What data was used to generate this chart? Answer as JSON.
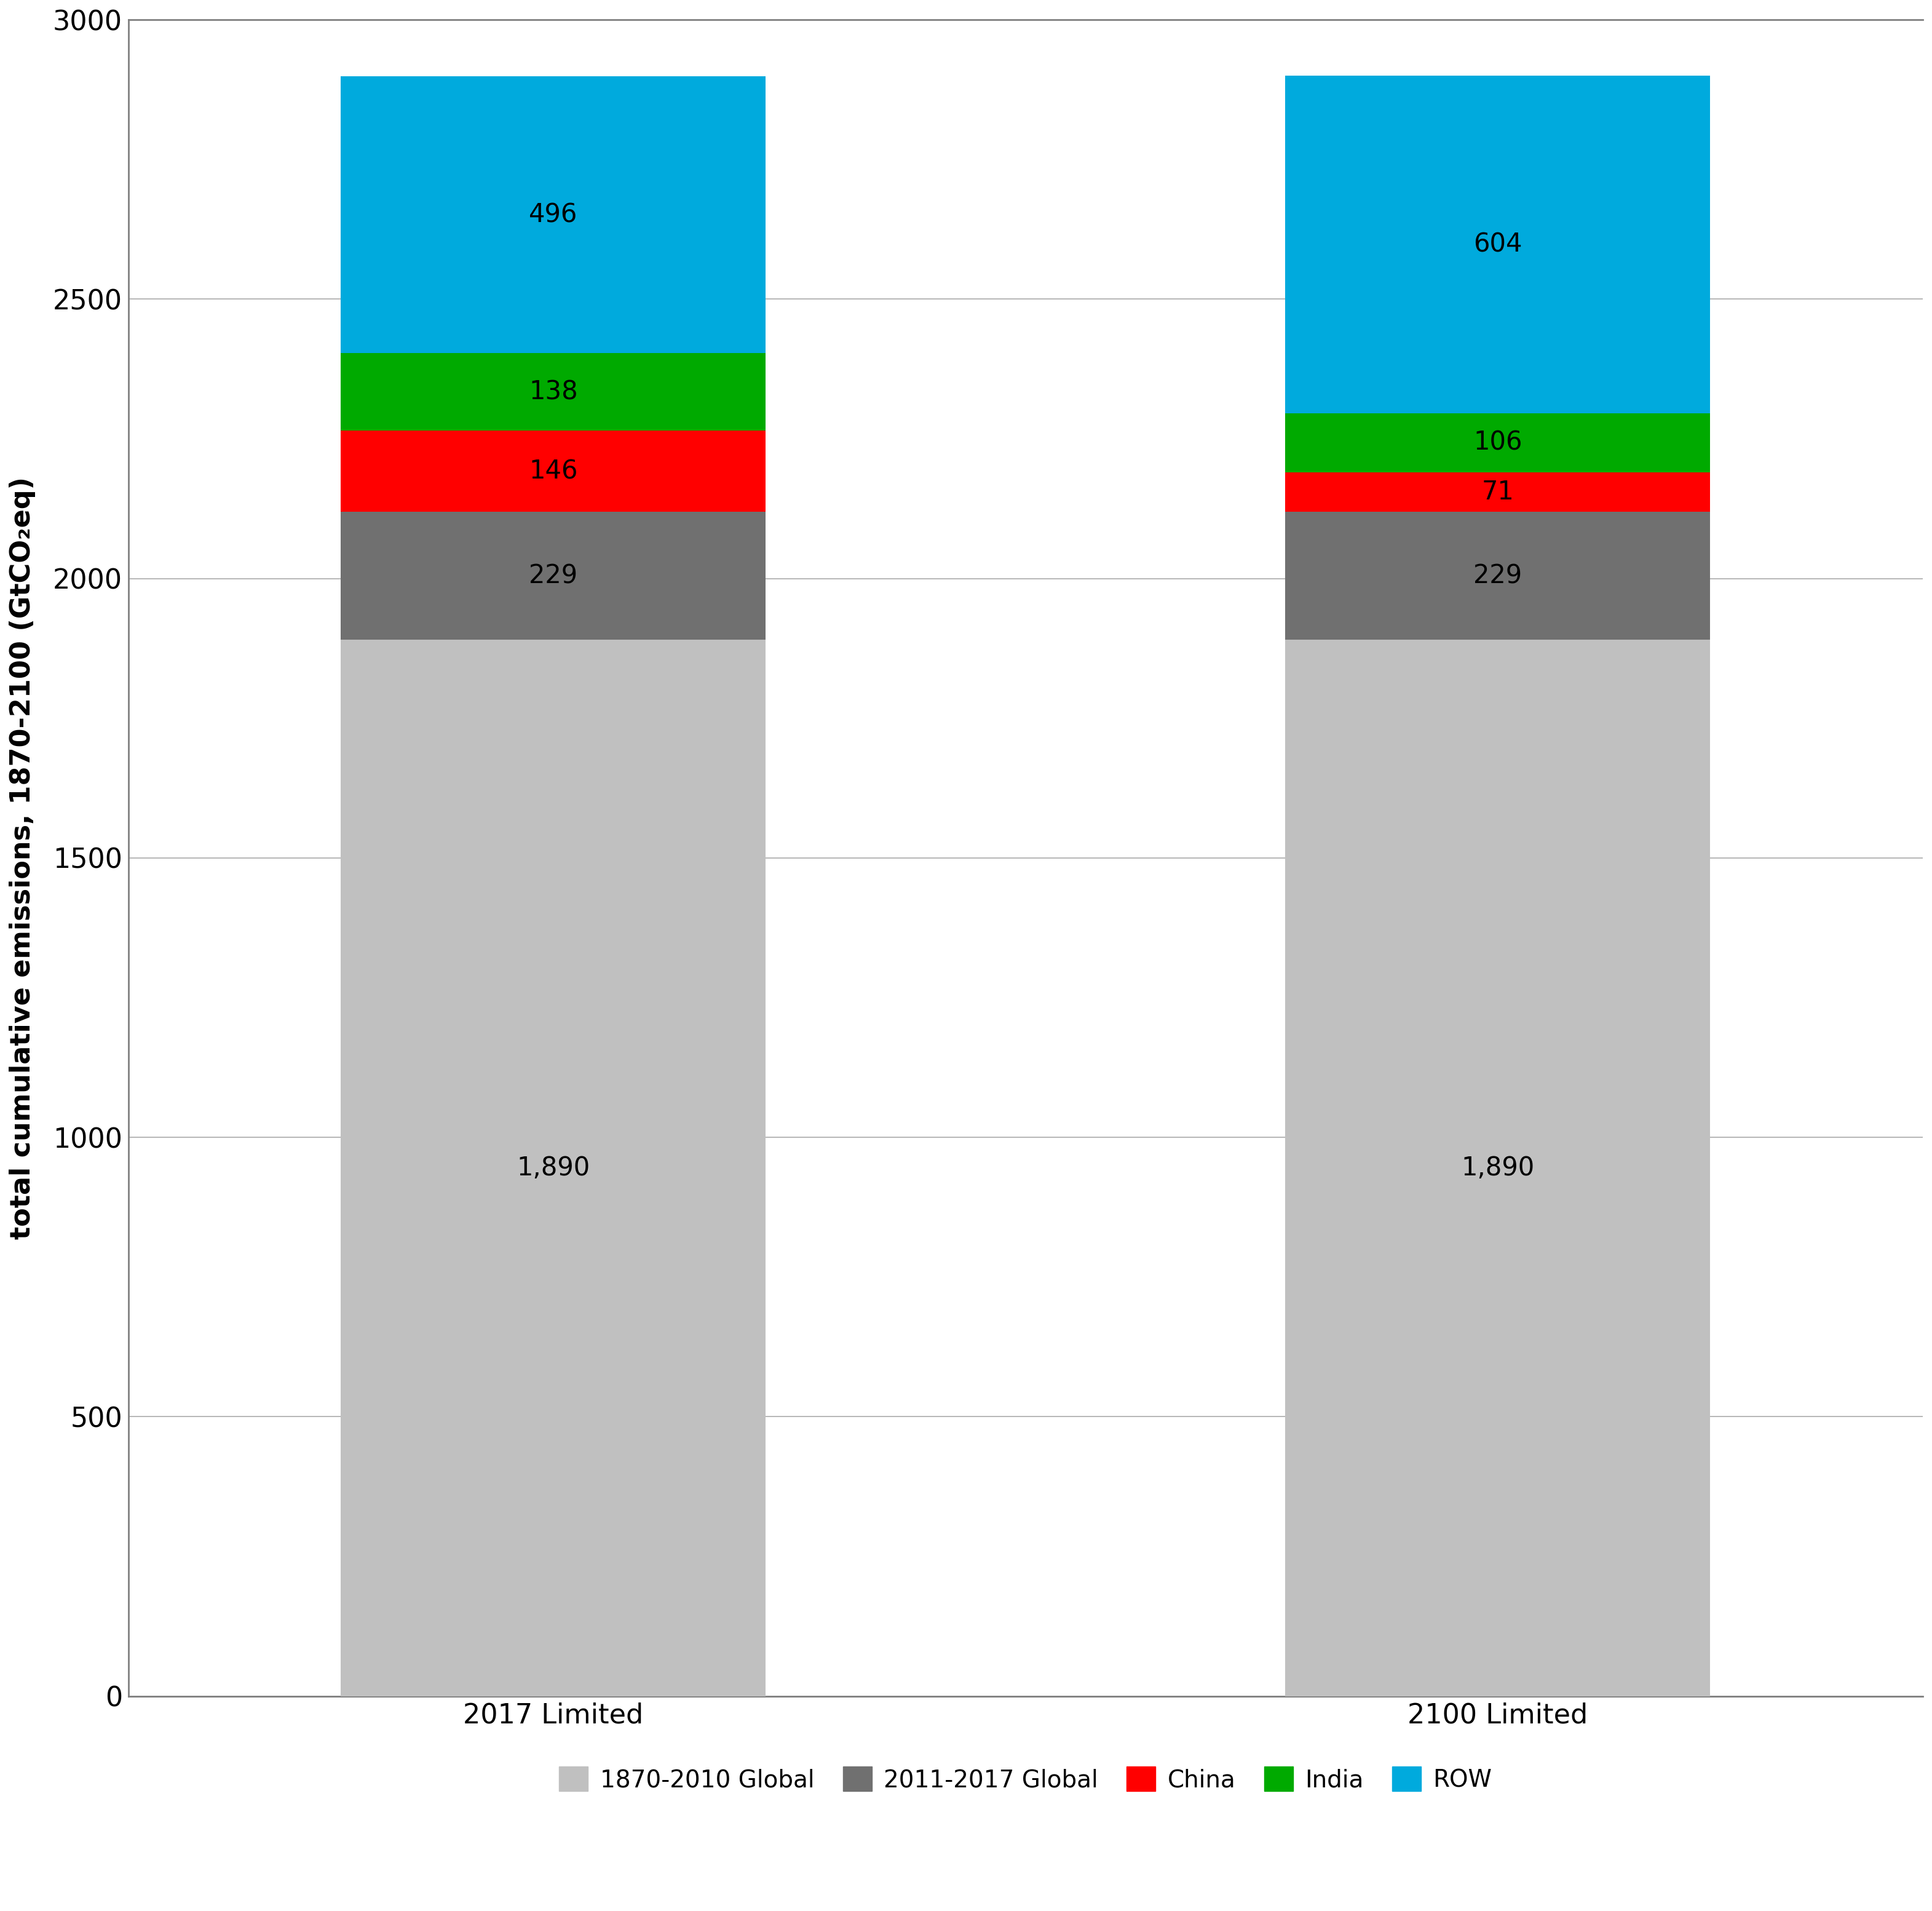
{
  "categories": [
    "2017 Limited",
    "2100 Limited"
  ],
  "segments": [
    {
      "label": "1870-2010 Global",
      "values": [
        1890,
        1890
      ],
      "color": "#C0C0C0"
    },
    {
      "label": "2011-2017 Global",
      "values": [
        229,
        229
      ],
      "color": "#707070"
    },
    {
      "label": "China",
      "values": [
        146,
        71
      ],
      "color": "#FF0000"
    },
    {
      "label": "India",
      "values": [
        138,
        106
      ],
      "color": "#00AA00"
    },
    {
      "label": "ROW",
      "values": [
        496,
        604
      ],
      "color": "#00AADD"
    }
  ],
  "bar_labels": [
    [
      "1,890",
      "229",
      "146",
      "138",
      "496"
    ],
    [
      "1,890",
      "229",
      "71",
      "106",
      "604"
    ]
  ],
  "ylabel": "total cumulative emissions, 1870-2100 (GtCO₂eq)",
  "ylim": [
    0,
    3000
  ],
  "yticks": [
    0,
    500,
    1000,
    1500,
    2000,
    2500,
    3000
  ],
  "background_color": "#FFFFFF",
  "spine_color": "#808080",
  "grid_color": "#AAAAAA",
  "tick_fontsize": 32,
  "legend_fontsize": 28,
  "bar_label_fontsize": 30,
  "ylabel_fontsize": 32,
  "x_positions": [
    1,
    3
  ],
  "bar_width": 0.9,
  "xlim": [
    0.1,
    3.9
  ]
}
